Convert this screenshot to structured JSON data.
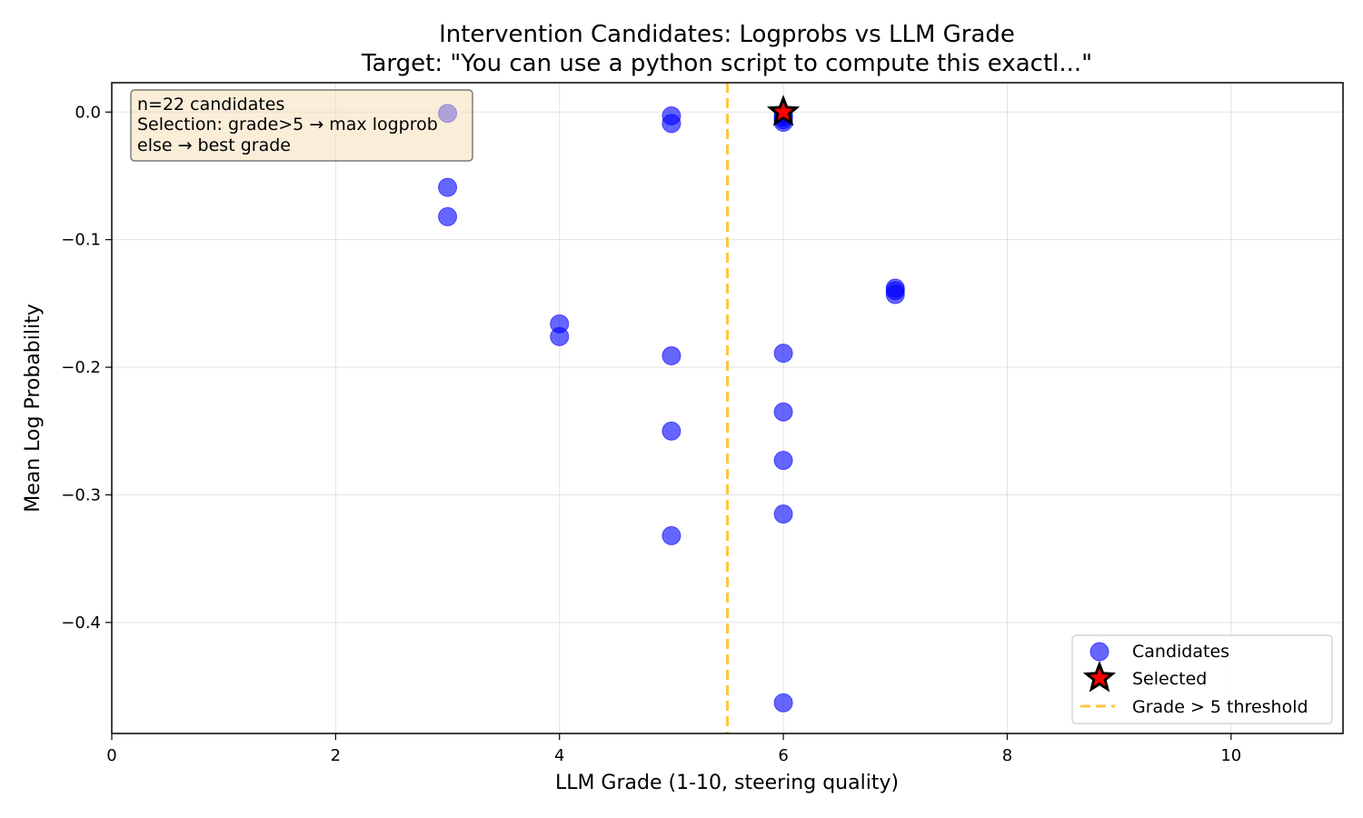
{
  "chart_data": {
    "type": "scatter",
    "title_line1": "Intervention Candidates: Logprobs vs LLM Grade",
    "title_line2": "Target: \"You can use a python script to compute this exactl...\"",
    "xlabel": "LLM Grade (1-10, steering quality)",
    "ylabel": "Mean Log Probability",
    "xlim": [
      0,
      11
    ],
    "ylim": [
      -0.487,
      0.023
    ],
    "xticks": [
      0,
      2,
      4,
      6,
      8,
      10
    ],
    "yticks": [
      0.0,
      -0.1,
      -0.2,
      -0.3,
      -0.4
    ],
    "ytick_labels": [
      "0.0",
      "−0.1",
      "−0.2",
      "−0.3",
      "−0.4"
    ],
    "grid": true,
    "threshold": {
      "x": 5.5,
      "color": "#FFB300",
      "label": "Grade > 5 threshold"
    },
    "series": [
      {
        "name": "Candidates",
        "color": "#0000FF",
        "points": [
          [
            3,
            -0.001
          ],
          [
            3,
            -0.059
          ],
          [
            3,
            -0.082
          ],
          [
            4,
            -0.166
          ],
          [
            4,
            -0.176
          ],
          [
            5,
            -0.003
          ],
          [
            5,
            -0.009
          ],
          [
            5,
            -0.191
          ],
          [
            5,
            -0.25
          ],
          [
            5,
            -0.332
          ],
          [
            6,
            -0.002
          ],
          [
            6,
            -0.004
          ],
          [
            6,
            -0.006
          ],
          [
            6,
            -0.008
          ],
          [
            6,
            -0.189
          ],
          [
            6,
            -0.235
          ],
          [
            6,
            -0.273
          ],
          [
            6,
            -0.315
          ],
          [
            6,
            -0.463
          ],
          [
            7,
            -0.138
          ],
          [
            7,
            -0.143
          ],
          [
            7,
            -0.14
          ]
        ]
      },
      {
        "name": "Selected",
        "marker": "star",
        "color": "#FF0000",
        "edge": "#000000",
        "points": [
          [
            6,
            0.0
          ]
        ]
      }
    ],
    "annotation": {
      "lines": [
        "n=22 candidates",
        "Selection: grade>5 → max logprob",
        "else → best grade"
      ],
      "placement": "top-left"
    },
    "legend": {
      "placement": "bottom-right",
      "entries": [
        "Candidates",
        "Selected",
        "Grade > 5 threshold"
      ]
    }
  }
}
